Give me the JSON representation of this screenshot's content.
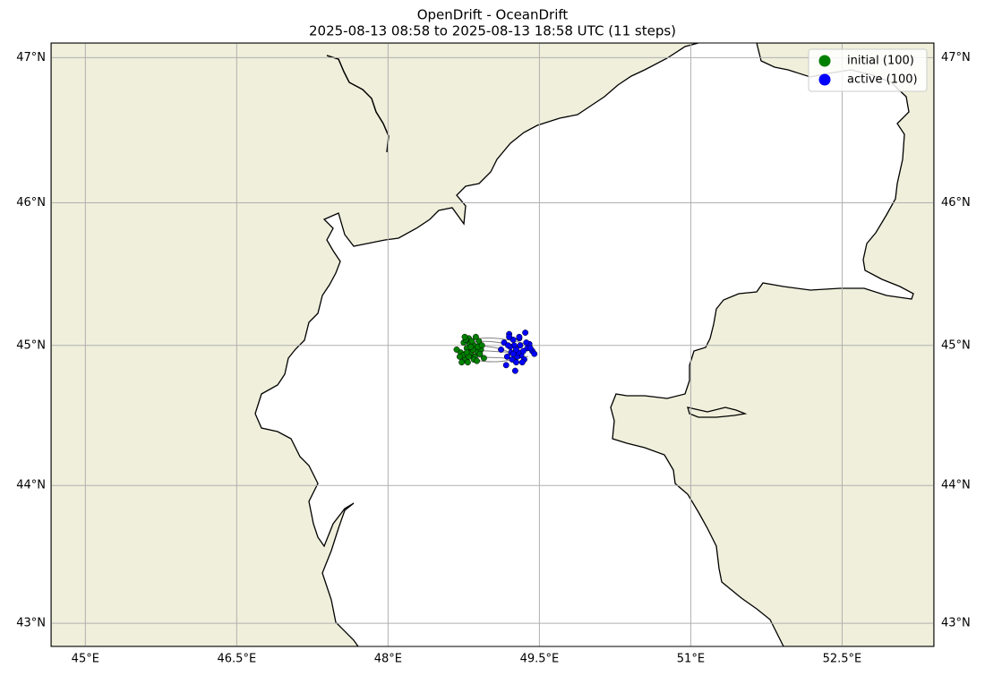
{
  "chart_data": {
    "type": "scatter",
    "projection": "mercator",
    "title": "OpenDrift - OceanDrift",
    "subtitle": "2025-08-13 08:58 to 2025-08-13 18:58 UTC (11 steps)",
    "xlim": [
      44.66,
      53.41
    ],
    "ylim": [
      42.83,
      47.1
    ],
    "xticks": [
      {
        "value": 45,
        "label": "45°E"
      },
      {
        "value": 46.5,
        "label": "46.5°E"
      },
      {
        "value": 48,
        "label": "48°E"
      },
      {
        "value": 49.5,
        "label": "49.5°E"
      },
      {
        "value": 51,
        "label": "51°E"
      },
      {
        "value": 52.5,
        "label": "52.5°E"
      }
    ],
    "yticks": [
      {
        "value": 43,
        "label": "43°N"
      },
      {
        "value": 44,
        "label": "44°N"
      },
      {
        "value": 45,
        "label": "45°N"
      },
      {
        "value": 46,
        "label": "46°N"
      },
      {
        "value": 47,
        "label": "47°N"
      }
    ],
    "grid": true,
    "legend": "upper right",
    "series": [
      {
        "name": "initial (100)",
        "color": "#008000",
        "x": [
          48.72,
          48.75,
          48.78,
          48.8,
          48.83,
          48.85,
          48.88,
          48.9,
          48.92,
          48.76,
          48.79,
          48.82,
          48.86,
          48.89,
          48.74,
          48.77,
          48.81,
          48.84,
          48.87,
          48.91,
          48.68,
          48.71,
          48.73,
          48.8,
          48.83,
          48.85,
          48.93,
          48.95,
          48.78,
          48.82,
          48.76,
          48.88
        ],
        "values": [
          44.95,
          45.02,
          44.98,
          45.05,
          44.93,
          45.0,
          44.96,
          45.03,
          44.97,
          44.9,
          44.88,
          44.95,
          44.92,
          44.99,
          44.93,
          45.04,
          45.01,
          44.97,
          45.06,
          44.94,
          44.97,
          44.92,
          44.88,
          44.92,
          45.03,
          44.9,
          45.0,
          44.91,
          44.95,
          44.99,
          45.06,
          44.89
        ]
      },
      {
        "name": "active (100)",
        "color": "#0000ff",
        "x": [
          49.12,
          49.15,
          49.18,
          49.2,
          49.22,
          49.25,
          49.27,
          49.3,
          49.32,
          49.35,
          49.38,
          49.4,
          49.43,
          49.45,
          49.17,
          49.21,
          49.24,
          49.28,
          49.31,
          49.34,
          49.37,
          49.26,
          49.29,
          49.33,
          49.2,
          49.23,
          49.36,
          49.41,
          49.19,
          49.27,
          49.3,
          49.24
        ],
        "values": [
          44.97,
          45.02,
          44.92,
          45.08,
          44.95,
          45.0,
          44.88,
          45.05,
          44.93,
          44.9,
          44.98,
          45.01,
          44.96,
          44.94,
          44.86,
          44.99,
          45.04,
          44.92,
          45.0,
          44.96,
          45.02,
          44.82,
          44.95,
          44.88,
          45.06,
          44.9,
          45.09,
          44.98,
          45.0,
          44.97,
          45.06,
          44.94
        ]
      }
    ]
  }
}
